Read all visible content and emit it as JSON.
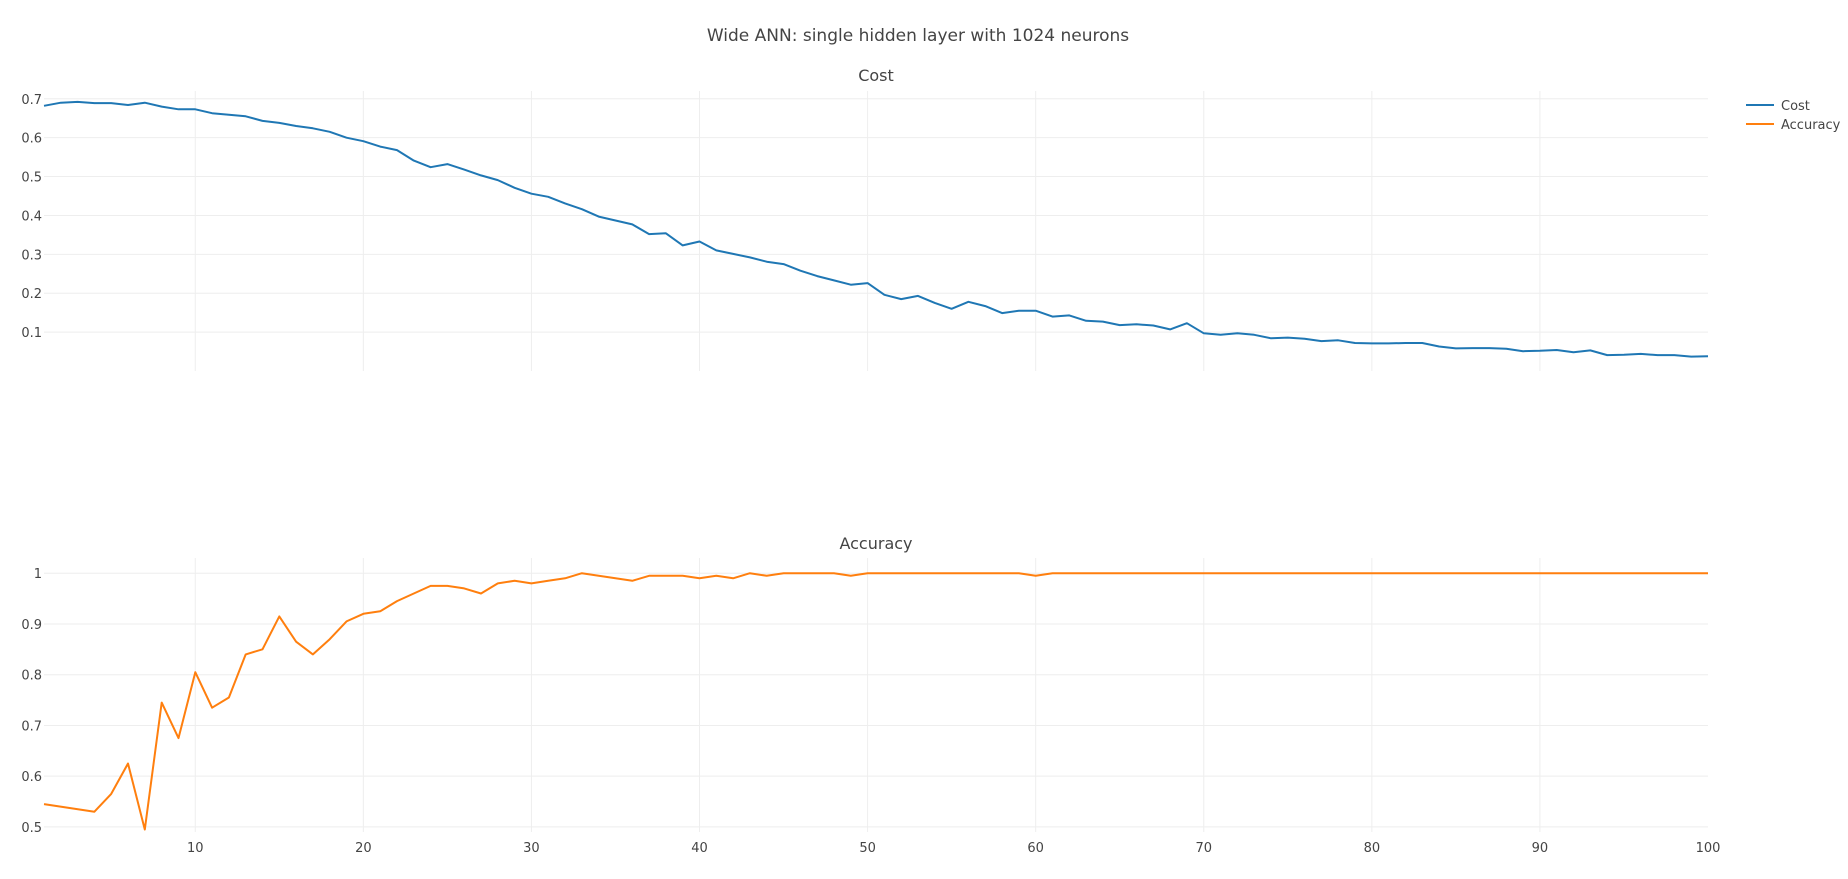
{
  "chart_data": {
    "type": "line",
    "title": "Wide ANN: single hidden layer with 1024 neurons",
    "legend": {
      "placement": "top-right",
      "entries": [
        {
          "name": "Cost",
          "color": "#1f77b4"
        },
        {
          "name": "Accuracy",
          "color": "#ff7f0e"
        }
      ]
    },
    "x_range": [
      1,
      100
    ],
    "x_ticks": [
      10,
      20,
      30,
      40,
      50,
      60,
      70,
      80,
      90,
      100
    ],
    "grid": true,
    "subplots": [
      {
        "title": "Cost",
        "series_name": "Cost",
        "color": "#1f77b4",
        "ylim": [
          0,
          0.72
        ],
        "y_ticks": [
          0.1,
          0.2,
          0.3,
          0.4,
          0.5,
          0.6,
          0.7
        ],
        "y_tick_labels": [
          "0.1",
          "0.2",
          "0.3",
          "0.4",
          "0.5",
          "0.6",
          "0.7"
        ],
        "x": [
          1,
          2,
          3,
          4,
          5,
          6,
          7,
          8,
          9,
          10,
          11,
          12,
          13,
          14,
          15,
          16,
          17,
          18,
          19,
          20,
          21,
          22,
          23,
          24,
          25,
          26,
          27,
          28,
          29,
          30,
          31,
          32,
          33,
          34,
          35,
          36,
          37,
          38,
          39,
          40,
          41,
          42,
          43,
          44,
          45,
          46,
          47,
          48,
          49,
          50,
          51,
          52,
          53,
          54,
          55,
          56,
          57,
          58,
          59,
          60,
          61,
          62,
          63,
          64,
          65,
          66,
          67,
          68,
          69,
          70,
          71,
          72,
          73,
          74,
          75,
          76,
          77,
          78,
          79,
          80,
          81,
          82,
          83,
          84,
          85,
          86,
          87,
          88,
          89,
          90,
          91,
          92,
          93,
          94,
          95,
          96,
          97,
          98,
          99,
          100
        ],
        "values": [
          0.682,
          0.69,
          0.692,
          0.689,
          0.689,
          0.684,
          0.69,
          0.68,
          0.673,
          0.673,
          0.663,
          0.659,
          0.655,
          0.643,
          0.638,
          0.63,
          0.624,
          0.615,
          0.6,
          0.591,
          0.577,
          0.568,
          0.541,
          0.524,
          0.532,
          0.518,
          0.503,
          0.491,
          0.471,
          0.456,
          0.448,
          0.431,
          0.416,
          0.397,
          0.387,
          0.377,
          0.352,
          0.354,
          0.323,
          0.333,
          0.31,
          0.301,
          0.292,
          0.281,
          0.275,
          0.258,
          0.244,
          0.233,
          0.222,
          0.226,
          0.196,
          0.185,
          0.193,
          0.175,
          0.16,
          0.178,
          0.167,
          0.149,
          0.155,
          0.155,
          0.14,
          0.143,
          0.129,
          0.127,
          0.118,
          0.12,
          0.117,
          0.107,
          0.123,
          0.097,
          0.093,
          0.097,
          0.093,
          0.084,
          0.086,
          0.083,
          0.077,
          0.079,
          0.072,
          0.071,
          0.071,
          0.072,
          0.072,
          0.063,
          0.058,
          0.059,
          0.059,
          0.057,
          0.051,
          0.052,
          0.054,
          0.048,
          0.053,
          0.041,
          0.042,
          0.044,
          0.041,
          0.041,
          0.037,
          0.038
        ]
      },
      {
        "title": "Accuracy",
        "series_name": "Accuracy",
        "color": "#ff7f0e",
        "ylim": [
          0.49,
          1.03
        ],
        "y_ticks": [
          0.5,
          0.6,
          0.7,
          0.8,
          0.9,
          1.0
        ],
        "y_tick_labels": [
          "0.5",
          "0.6",
          "0.7",
          "0.8",
          "0.9",
          "1"
        ],
        "x": [
          1,
          4,
          5,
          6,
          7,
          8,
          9,
          10,
          11,
          12,
          13,
          14,
          15,
          16,
          17,
          18,
          19,
          20,
          21,
          22,
          23,
          24,
          25,
          26,
          27,
          28,
          29,
          30,
          31,
          32,
          33,
          34,
          35,
          36,
          37,
          38,
          39,
          40,
          41,
          42,
          43,
          44,
          45,
          46,
          47,
          48,
          49,
          50,
          51,
          52,
          53,
          54,
          55,
          56,
          57,
          58,
          59,
          60,
          61,
          62,
          63,
          64,
          65,
          66,
          67,
          68,
          69,
          70,
          71,
          72,
          73,
          74,
          75,
          76,
          77,
          78,
          79,
          80,
          81,
          82,
          83,
          84,
          85,
          86,
          87,
          88,
          89,
          90,
          91,
          92,
          93,
          94,
          95,
          96,
          97,
          98,
          99,
          100
        ],
        "values": [
          0.545,
          0.53,
          0.565,
          0.625,
          0.495,
          0.745,
          0.675,
          0.805,
          0.735,
          0.755,
          0.84,
          0.85,
          0.915,
          0.865,
          0.84,
          0.87,
          0.905,
          0.92,
          0.925,
          0.945,
          0.96,
          0.975,
          0.975,
          0.97,
          0.96,
          0.98,
          0.985,
          0.98,
          0.985,
          0.99,
          1.0,
          0.995,
          0.99,
          0.985,
          0.995,
          0.995,
          0.995,
          0.99,
          0.995,
          0.99,
          1.0,
          0.995,
          1.0,
          1.0,
          1.0,
          1.0,
          0.995,
          1.0,
          1.0,
          1.0,
          1.0,
          1.0,
          1.0,
          1.0,
          1.0,
          1.0,
          1.0,
          0.995,
          1.0,
          1.0,
          1.0,
          1.0,
          1.0,
          1.0,
          1.0,
          1.0,
          1.0,
          1.0,
          1.0,
          1.0,
          1.0,
          1.0,
          1.0,
          1.0,
          1.0,
          1.0,
          1.0,
          1.0,
          1.0,
          1.0,
          1.0,
          1.0,
          1.0,
          1.0,
          1.0,
          1.0,
          1.0,
          1.0,
          1.0,
          1.0,
          1.0,
          1.0,
          1.0,
          1.0,
          1.0,
          1.0,
          1.0,
          1.0
        ]
      }
    ]
  }
}
